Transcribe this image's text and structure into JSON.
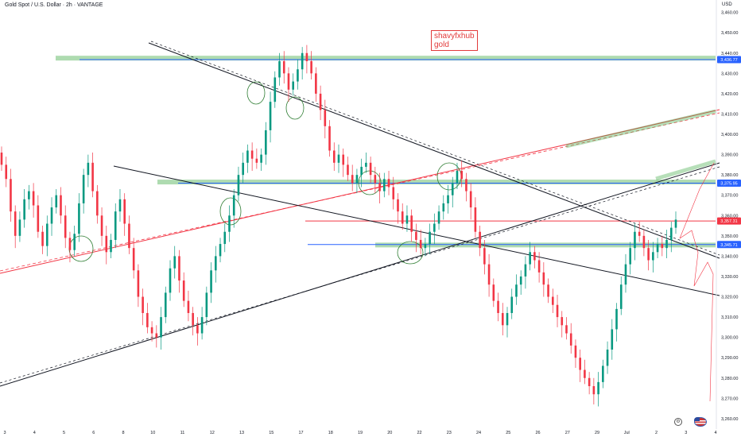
{
  "header": {
    "title": "Gold Spot / U.S. Dollar · 2h · VANTAGE",
    "currency": "USD"
  },
  "watermark": {
    "line1": "shavyfxhub",
    "line2": "gold"
  },
  "colors": {
    "up": "#089981",
    "down": "#f23645",
    "zone": "#4caf50",
    "blue_line": "#2962ff",
    "trend_red": "#f23645",
    "trend_black": "#131722"
  },
  "icons": {
    "settings": "gear-icon",
    "flag": "us-flag-icon"
  },
  "chart_data": {
    "type": "candlestick",
    "y_axis": {
      "ticks": [
        "3,460.00",
        "3,450.00",
        "3,440.00",
        "3,430.00",
        "3,420.00",
        "3,410.00",
        "3,400.00",
        "3,390.00",
        "3,380.00",
        "3,370.00",
        "3,360.00",
        "3,350.00",
        "3,340.00",
        "3,330.00",
        "3,320.00",
        "3,310.00",
        "3,300.00",
        "3,290.00",
        "3,280.00",
        "3,270.00",
        "3,260.00"
      ],
      "min": 3258,
      "max": 3463
    },
    "x_axis": {
      "ticks": [
        "3",
        "4",
        "5",
        "6",
        "8",
        "10",
        "11",
        "12",
        "13",
        "15",
        "17",
        "18",
        "19",
        "20",
        "22",
        "23",
        "24",
        "25",
        "26",
        "27",
        "29",
        "Jul",
        "2",
        "3",
        "4"
      ]
    },
    "price_labels": [
      {
        "value": 3436.77,
        "text": "3,436.77",
        "color": "#2962ff"
      },
      {
        "value": 3375.95,
        "text": "3,375.95",
        "color": "#2962ff"
      },
      {
        "value": 3357.31,
        "text": "3,357.31",
        "color": "#f23645"
      },
      {
        "value": 3345.71,
        "text": "3,345.71",
        "color": "#2962ff"
      }
    ],
    "zones": [
      {
        "level": 3437.5
      },
      {
        "level": 3376.5
      },
      {
        "level": 3345.5
      }
    ],
    "series_close": [
      3385,
      3378,
      3362,
      3350,
      3358,
      3368,
      3372,
      3365,
      3352,
      3345,
      3356,
      3364,
      3370,
      3360,
      3349,
      3343,
      3351,
      3366,
      3380,
      3386,
      3372,
      3360,
      3350,
      3342,
      3348,
      3362,
      3368,
      3356,
      3344,
      3333,
      3320,
      3312,
      3305,
      3302,
      3300,
      3310,
      3322,
      3334,
      3340,
      3328,
      3318,
      3312,
      3306,
      3302,
      3310,
      3322,
      3333,
      3340,
      3346,
      3352,
      3360,
      3370,
      3380,
      3386,
      3392,
      3388,
      3386,
      3390,
      3402,
      3416,
      3428,
      3436,
      3430,
      3422,
      3426,
      3432,
      3440,
      3436,
      3430,
      3420,
      3412,
      3404,
      3392,
      3386,
      3390,
      3385,
      3380,
      3376,
      3380,
      3384,
      3386,
      3380,
      3376,
      3372,
      3378,
      3374,
      3368,
      3362,
      3356,
      3360,
      3352,
      3348,
      3344,
      3346,
      3352,
      3356,
      3362,
      3366,
      3370,
      3376,
      3382,
      3378,
      3372,
      3364,
      3352,
      3344,
      3336,
      3326,
      3318,
      3312,
      3306,
      3312,
      3320,
      3326,
      3330,
      3336,
      3342,
      3338,
      3332,
      3326,
      3320,
      3316,
      3310,
      3306,
      3302,
      3296,
      3290,
      3284,
      3280,
      3276,
      3272,
      3278,
      3286,
      3294,
      3304,
      3314,
      3326,
      3336,
      3344,
      3352,
      3350,
      3344,
      3338,
      3342,
      3346,
      3344,
      3348,
      3354,
      3358
    ]
  }
}
